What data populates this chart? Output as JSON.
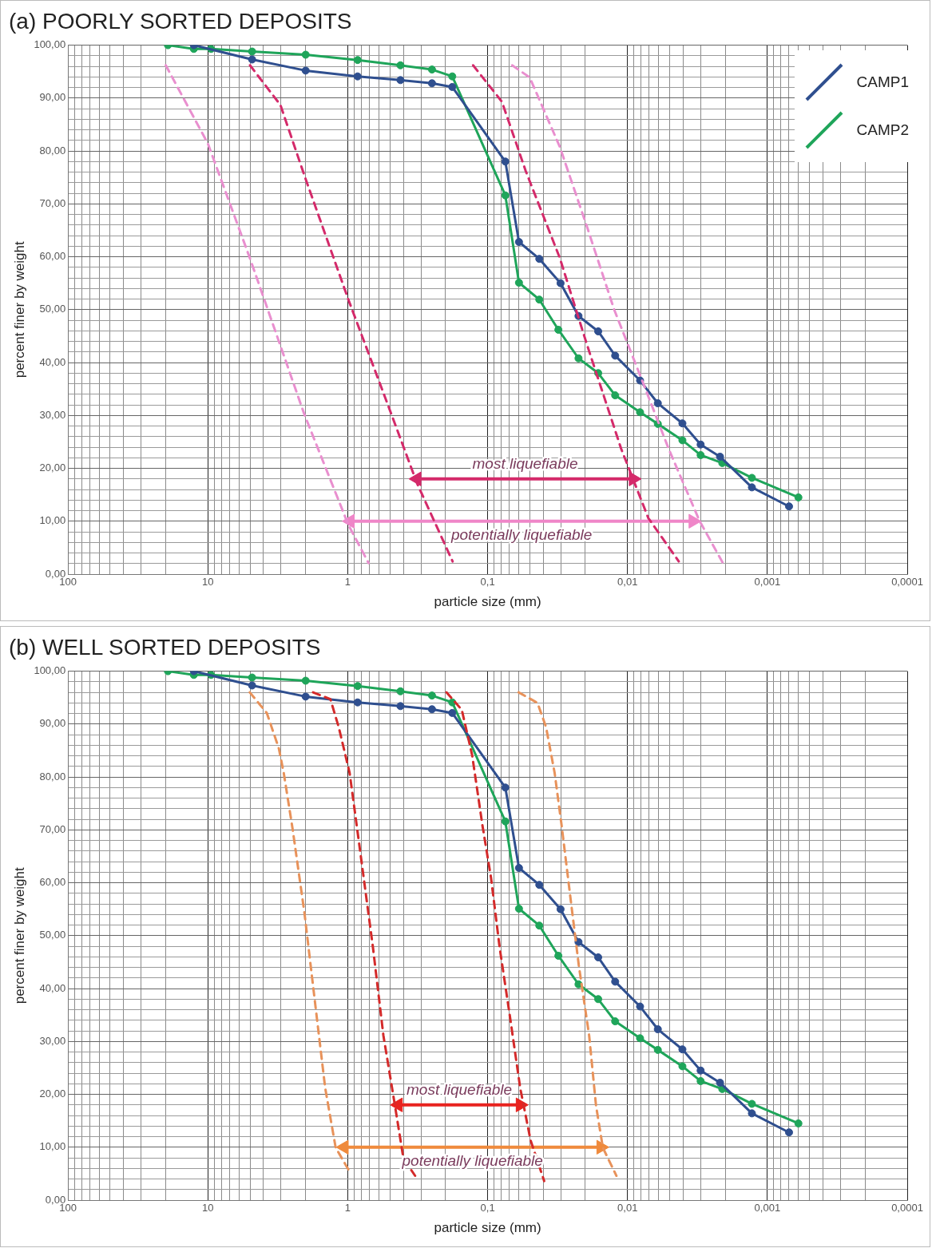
{
  "chart_data": [
    {
      "type": "line",
      "title": "(a) POORLY SORTED DEPOSITS",
      "xlabel": "particle size (mm)",
      "ylabel": "percent finer by weight",
      "log": "x",
      "grid": true,
      "legend": "top right",
      "xlim": [
        100,
        0.0001
      ],
      "ylim": [
        0,
        100
      ],
      "xticks": [
        {
          "value": 0.0001,
          "label": "0,0001"
        },
        {
          "value": 0.0002,
          "label": null
        },
        {
          "value": 0.0003,
          "label": null
        },
        {
          "value": 0.0004,
          "label": null
        },
        {
          "value": 0.0005,
          "label": null
        },
        {
          "value": 0.0006,
          "label": null
        },
        {
          "value": 0.0007,
          "label": null
        },
        {
          "value": 0.0008,
          "label": null
        },
        {
          "value": 0.0009,
          "label": null
        },
        {
          "value": 0.001,
          "label": "0,001"
        },
        {
          "value": 0.002,
          "label": null
        },
        {
          "value": 0.003,
          "label": null
        },
        {
          "value": 0.004,
          "label": null
        },
        {
          "value": 0.005,
          "label": null
        },
        {
          "value": 0.006,
          "label": null
        },
        {
          "value": 0.007,
          "label": null
        },
        {
          "value": 0.008,
          "label": null
        },
        {
          "value": 0.009,
          "label": null
        },
        {
          "value": 0.01,
          "label": "0,01"
        },
        {
          "value": 0.02,
          "label": null
        },
        {
          "value": 0.03,
          "label": null
        },
        {
          "value": 0.04,
          "label": null
        },
        {
          "value": 0.05,
          "label": null
        },
        {
          "value": 0.06,
          "label": null
        },
        {
          "value": 0.07,
          "label": null
        },
        {
          "value": 0.08,
          "label": null
        },
        {
          "value": 0.09,
          "label": null
        },
        {
          "value": 0.1,
          "label": "0,1"
        },
        {
          "value": 0.2,
          "label": null
        },
        {
          "value": 0.3,
          "label": null
        },
        {
          "value": 0.4,
          "label": null
        },
        {
          "value": 0.5,
          "label": null
        },
        {
          "value": 0.6,
          "label": null
        },
        {
          "value": 0.7,
          "label": null
        },
        {
          "value": 0.8,
          "label": null
        },
        {
          "value": 0.9,
          "label": null
        },
        1,
        {
          "value": 2,
          "label": null
        },
        {
          "value": 3,
          "label": null
        },
        {
          "value": 4,
          "label": null
        },
        {
          "value": 5,
          "label": null
        },
        {
          "value": 6,
          "label": null
        },
        {
          "value": 7,
          "label": null
        },
        {
          "value": 8,
          "label": null
        },
        {
          "value": 9,
          "label": null
        },
        10,
        {
          "value": 20,
          "label": null
        },
        {
          "value": 30,
          "label": null
        },
        {
          "value": 40,
          "label": null
        },
        {
          "value": 50,
          "label": null
        },
        {
          "value": 60,
          "label": null
        },
        {
          "value": 70,
          "label": null
        },
        {
          "value": 80,
          "label": null
        },
        {
          "value": 90,
          "label": null
        },
        100
      ],
      "yticks": [
        {
          "value": 0,
          "label": "0,00"
        },
        {
          "value": 2,
          "label": null
        },
        {
          "value": 4,
          "label": null
        },
        {
          "value": 6,
          "label": null
        },
        {
          "value": 8,
          "label": null
        },
        {
          "value": 10,
          "label": "10,00"
        },
        {
          "value": 12,
          "label": null
        },
        {
          "value": 14,
          "label": null
        },
        {
          "value": 16,
          "label": null
        },
        {
          "value": 18,
          "label": null
        },
        {
          "value": 20,
          "label": "20,00"
        },
        {
          "value": 22,
          "label": null
        },
        {
          "value": 24,
          "label": null
        },
        {
          "value": 26,
          "label": null
        },
        {
          "value": 28,
          "label": null
        },
        {
          "value": 30,
          "label": "30,00"
        },
        {
          "value": 32,
          "label": null
        },
        {
          "value": 34,
          "label": null
        },
        {
          "value": 36,
          "label": null
        },
        {
          "value": 38,
          "label": null
        },
        {
          "value": 40,
          "label": "40,00"
        },
        {
          "value": 42,
          "label": null
        },
        {
          "value": 44,
          "label": null
        },
        {
          "value": 46,
          "label": null
        },
        {
          "value": 48,
          "label": null
        },
        {
          "value": 50,
          "label": "50,00"
        },
        {
          "value": 52,
          "label": null
        },
        {
          "value": 54,
          "label": null
        },
        {
          "value": 56,
          "label": null
        },
        {
          "value": 58,
          "label": null
        },
        {
          "value": 60,
          "label": "60,00"
        },
        {
          "value": 62,
          "label": null
        },
        {
          "value": 64,
          "label": null
        },
        {
          "value": 66,
          "label": null
        },
        {
          "value": 68,
          "label": null
        },
        {
          "value": 70,
          "label": "70,00"
        },
        {
          "value": 72,
          "label": null
        },
        {
          "value": 74,
          "label": null
        },
        {
          "value": 76,
          "label": null
        },
        {
          "value": 78,
          "label": null
        },
        {
          "value": 80,
          "label": "80,00"
        },
        {
          "value": 82,
          "label": null
        },
        {
          "value": 84,
          "label": null
        },
        {
          "value": 86,
          "label": null
        },
        {
          "value": 88,
          "label": null
        },
        {
          "value": 90,
          "label": "90,00"
        },
        {
          "value": 92,
          "label": null
        },
        {
          "value": 94,
          "label": null
        },
        {
          "value": 96,
          "label": null
        },
        {
          "value": 98,
          "label": null
        },
        {
          "value": 100,
          "label": "100,00"
        }
      ],
      "series": [
        {
          "color": "#e98fcf",
          "line_style": "dashed",
          "marker": "none",
          "x": [
            20,
            10,
            5.02,
            2.05,
            0.99,
            0.71
          ],
          "values": [
            96.2,
            81.4,
            59.8,
            30.3,
            9.3,
            2.1
          ]
        },
        {
          "color": "#d42a6a",
          "line_style": "dashed",
          "marker": "none",
          "x": [
            5,
            3.03,
            2.05,
            0.99,
            0.5,
            0.32,
            0.178
          ],
          "values": [
            96.2,
            88.7,
            75.5,
            51.9,
            31,
            17.2,
            2.4
          ]
        },
        {
          "color": "#d42a6a",
          "line_style": "dashed",
          "marker": "none",
          "x": [
            0.127,
            0.079,
            0.0534,
            0.0305,
            0.0195,
            0.0111,
            0.0071,
            0.0043
          ],
          "values": [
            96.2,
            89.3,
            76.2,
            59.8,
            43.4,
            23.7,
            10.6,
            2.4
          ]
        },
        {
          "color": "#e98fcf",
          "line_style": "dashed",
          "marker": "none",
          "x": [
            0.0668,
            0.05,
            0.0305,
            0.0195,
            0.01245,
            0.00794,
            0.00508,
            0.00306,
            0.00205
          ],
          "values": [
            96.2,
            93.9,
            80.8,
            65.7,
            50,
            36.9,
            23.7,
            10.1,
            1.8
          ]
        },
        {
          "color": "#d42a6a",
          "marker": "triangle",
          "x": [
            0.32,
            0.0091
          ],
          "values": [
            18,
            18
          ]
        },
        {
          "color": "#ef86c8",
          "marker": "triangle",
          "x": [
            0.96,
            0.0034
          ],
          "values": [
            10,
            10
          ]
        },
        {
          "name": "CAMP1",
          "color": "#2f4f8f",
          "marker": "circle",
          "x": [
            12.6,
            4.83,
            2,
            0.85,
            0.42,
            0.25,
            0.179,
            0.0747,
            0.0597,
            0.0427,
            0.0301,
            0.0224,
            0.0162,
            0.01225,
            0.00813,
            0.00607,
            0.00405,
            0.003,
            0.00218,
            0.00129,
            0.0007
          ],
          "values": [
            100,
            97.3,
            95.2,
            94.1,
            93.4,
            92.8,
            92.1,
            78,
            62.8,
            59.6,
            55,
            48.8,
            45.9,
            41.3,
            36.6,
            32.3,
            28.5,
            24.5,
            22.2,
            16.4,
            12.8
          ]
        },
        {
          "name": "CAMP2",
          "color": "#1fa55a",
          "marker": "circle",
          "x": [
            19.3,
            12.6,
            9.5,
            4.83,
            2,
            0.85,
            0.42,
            0.25,
            0.179,
            0.0747,
            0.0597,
            0.0427,
            0.0312,
            0.0224,
            0.0162,
            0.01225,
            0.00813,
            0.00607,
            0.00405,
            0.003,
            0.0021,
            0.00129,
            0.0006
          ],
          "values": [
            100,
            99.3,
            99.3,
            98.8,
            98.2,
            97.2,
            96.2,
            95.4,
            94.1,
            71.6,
            55.1,
            51.9,
            46.2,
            40.8,
            38,
            33.8,
            30.6,
            28.4,
            25.3,
            22.5,
            21,
            18.2,
            14.5
          ]
        }
      ],
      "annotations": [
        "most liquefiable",
        "potentially liquefiable"
      ]
    },
    {
      "type": "line",
      "title": "(b) WELL SORTED DEPOSITS",
      "xlabel": "particle size (mm)",
      "ylabel": "percent finer by weight",
      "log": "x",
      "grid": true,
      "xlim": [
        100,
        0.0001
      ],
      "ylim": [
        0,
        100
      ],
      "xticks": [
        {
          "value": 0.0001,
          "label": "0,0001"
        },
        {
          "value": 0.0002,
          "label": null
        },
        {
          "value": 0.0003,
          "label": null
        },
        {
          "value": 0.0004,
          "label": null
        },
        {
          "value": 0.0005,
          "label": null
        },
        {
          "value": 0.0006,
          "label": null
        },
        {
          "value": 0.0007,
          "label": null
        },
        {
          "value": 0.0008,
          "label": null
        },
        {
          "value": 0.0009,
          "label": null
        },
        {
          "value": 0.001,
          "label": "0,001"
        },
        {
          "value": 0.002,
          "label": null
        },
        {
          "value": 0.003,
          "label": null
        },
        {
          "value": 0.004,
          "label": null
        },
        {
          "value": 0.005,
          "label": null
        },
        {
          "value": 0.006,
          "label": null
        },
        {
          "value": 0.007,
          "label": null
        },
        {
          "value": 0.008,
          "label": null
        },
        {
          "value": 0.009,
          "label": null
        },
        {
          "value": 0.01,
          "label": "0,01"
        },
        {
          "value": 0.02,
          "label": null
        },
        {
          "value": 0.03,
          "label": null
        },
        {
          "value": 0.04,
          "label": null
        },
        {
          "value": 0.05,
          "label": null
        },
        {
          "value": 0.06,
          "label": null
        },
        {
          "value": 0.07,
          "label": null
        },
        {
          "value": 0.08,
          "label": null
        },
        {
          "value": 0.09,
          "label": null
        },
        {
          "value": 0.1,
          "label": "0,1"
        },
        {
          "value": 0.2,
          "label": null
        },
        {
          "value": 0.3,
          "label": null
        },
        {
          "value": 0.4,
          "label": null
        },
        {
          "value": 0.5,
          "label": null
        },
        {
          "value": 0.6,
          "label": null
        },
        {
          "value": 0.7,
          "label": null
        },
        {
          "value": 0.8,
          "label": null
        },
        {
          "value": 0.9,
          "label": null
        },
        1,
        {
          "value": 2,
          "label": null
        },
        {
          "value": 3,
          "label": null
        },
        {
          "value": 4,
          "label": null
        },
        {
          "value": 5,
          "label": null
        },
        {
          "value": 6,
          "label": null
        },
        {
          "value": 7,
          "label": null
        },
        {
          "value": 8,
          "label": null
        },
        {
          "value": 9,
          "label": null
        },
        10,
        {
          "value": 20,
          "label": null
        },
        {
          "value": 30,
          "label": null
        },
        {
          "value": 40,
          "label": null
        },
        {
          "value": 50,
          "label": null
        },
        {
          "value": 60,
          "label": null
        },
        {
          "value": 70,
          "label": null
        },
        {
          "value": 80,
          "label": null
        },
        {
          "value": 90,
          "label": null
        },
        100
      ],
      "yticks": [
        {
          "value": 0,
          "label": "0,00"
        },
        {
          "value": 2,
          "label": null
        },
        {
          "value": 4,
          "label": null
        },
        {
          "value": 6,
          "label": null
        },
        {
          "value": 8,
          "label": null
        },
        {
          "value": 10,
          "label": "10,00"
        },
        {
          "value": 12,
          "label": null
        },
        {
          "value": 14,
          "label": null
        },
        {
          "value": 16,
          "label": null
        },
        {
          "value": 18,
          "label": null
        },
        {
          "value": 20,
          "label": "20,00"
        },
        {
          "value": 22,
          "label": null
        },
        {
          "value": 24,
          "label": null
        },
        {
          "value": 26,
          "label": null
        },
        {
          "value": 28,
          "label": null
        },
        {
          "value": 30,
          "label": "30,00"
        },
        {
          "value": 32,
          "label": null
        },
        {
          "value": 34,
          "label": null
        },
        {
          "value": 36,
          "label": null
        },
        {
          "value": 38,
          "label": null
        },
        {
          "value": 40,
          "label": "40,00"
        },
        {
          "value": 42,
          "label": null
        },
        {
          "value": 44,
          "label": null
        },
        {
          "value": 46,
          "label": null
        },
        {
          "value": 48,
          "label": null
        },
        {
          "value": 50,
          "label": "50,00"
        },
        {
          "value": 52,
          "label": null
        },
        {
          "value": 54,
          "label": null
        },
        {
          "value": 56,
          "label": null
        },
        {
          "value": 58,
          "label": null
        },
        {
          "value": 60,
          "label": "60,00"
        },
        {
          "value": 62,
          "label": null
        },
        {
          "value": 64,
          "label": null
        },
        {
          "value": 66,
          "label": null
        },
        {
          "value": 68,
          "label": null
        },
        {
          "value": 70,
          "label": "70,00"
        },
        {
          "value": 72,
          "label": null
        },
        {
          "value": 74,
          "label": null
        },
        {
          "value": 76,
          "label": null
        },
        {
          "value": 78,
          "label": null
        },
        {
          "value": 80,
          "label": "80,00"
        },
        {
          "value": 82,
          "label": null
        },
        {
          "value": 84,
          "label": null
        },
        {
          "value": 86,
          "label": null
        },
        {
          "value": 88,
          "label": null
        },
        {
          "value": 90,
          "label": "90,00"
        },
        {
          "value": 92,
          "label": null
        },
        {
          "value": 94,
          "label": null
        },
        {
          "value": 96,
          "label": null
        },
        {
          "value": 98,
          "label": null
        },
        {
          "value": 100,
          "label": "100,00"
        }
      ],
      "series": [
        {
          "color": "#e8925a",
          "line_style": "dashed",
          "marker": "none",
          "x": [
            5.02,
            3.79,
            3.11,
            2.87,
            2.48,
            2.04,
            1.72,
            1.45,
            1.22,
            0.95
          ],
          "values": [
            96,
            92.1,
            85.4,
            80.8,
            70.2,
            54.3,
            37.7,
            21.2,
            9.9,
            5
          ]
        },
        {
          "color": "#d42a2a",
          "line_style": "dashed",
          "marker": "none",
          "x": [
            1.77,
            1.33,
            1.16,
            0.97,
            0.83,
            0.66,
            0.556,
            0.46,
            0.4,
            0.33
          ],
          "values": [
            96,
            94.7,
            89.4,
            80.8,
            67.5,
            47.7,
            31.1,
            17.9,
            7.9,
            4.6
          ]
        },
        {
          "color": "#d42a2a",
          "line_style": "dashed",
          "marker": "none",
          "x": [
            0.197,
            0.153,
            0.129,
            0.109,
            0.0945,
            0.082,
            0.069,
            0.0585,
            0.0493,
            0.0394
          ],
          "values": [
            96,
            92.7,
            84.1,
            70.9,
            60.9,
            47.7,
            34.4,
            21.2,
            11.3,
            3.6
          ]
        },
        {
          "color": "#e8925a",
          "line_style": "dashed",
          "marker": "none",
          "x": [
            0.06,
            0.044,
            0.0382,
            0.0332,
            0.0296,
            0.0257,
            0.0223,
            0.0188,
            0.0168,
            0.015,
            0.012
          ],
          "values": [
            96,
            94,
            89.4,
            80.8,
            70.9,
            57.6,
            44.4,
            31.1,
            17.9,
            9.9,
            4.6
          ]
        },
        {
          "color": "#e8231f",
          "marker": "triangle",
          "x": [
            0.435,
            0.0585
          ],
          "values": [
            18,
            18
          ]
        },
        {
          "color": "#ef8a3c",
          "marker": "triangle",
          "x": [
            1.06,
            0.0155
          ],
          "values": [
            10,
            10
          ]
        },
        {
          "color": "#2f4f8f",
          "marker": "circle",
          "x": [
            12.6,
            4.83,
            2,
            0.85,
            0.42,
            0.25,
            0.179,
            0.0747,
            0.0597,
            0.0427,
            0.0301,
            0.0224,
            0.0162,
            0.01225,
            0.00813,
            0.00607,
            0.00405,
            0.003,
            0.00218,
            0.00129,
            0.0007
          ],
          "values": [
            100,
            97.3,
            95.2,
            94.1,
            93.4,
            92.8,
            92.1,
            78,
            62.8,
            59.6,
            55,
            48.8,
            45.9,
            41.3,
            36.6,
            32.3,
            28.5,
            24.5,
            22.2,
            16.4,
            12.8
          ]
        },
        {
          "color": "#1fa55a",
          "marker": "circle",
          "x": [
            19.3,
            12.6,
            9.5,
            4.83,
            2,
            0.85,
            0.42,
            0.25,
            0.179,
            0.0747,
            0.0597,
            0.0427,
            0.0312,
            0.0224,
            0.0162,
            0.01225,
            0.00813,
            0.00607,
            0.00405,
            0.003,
            0.0021,
            0.00129,
            0.0006
          ],
          "values": [
            100,
            99.3,
            99.3,
            98.8,
            98.2,
            97.2,
            96.2,
            95.4,
            94.1,
            71.6,
            55.1,
            51.9,
            46.2,
            40.8,
            38,
            33.8,
            30.6,
            28.4,
            25.3,
            22.5,
            21,
            18.2,
            14.5
          ]
        }
      ],
      "annotations": [
        "most liquefiable",
        "potentially liquefiable"
      ]
    }
  ]
}
